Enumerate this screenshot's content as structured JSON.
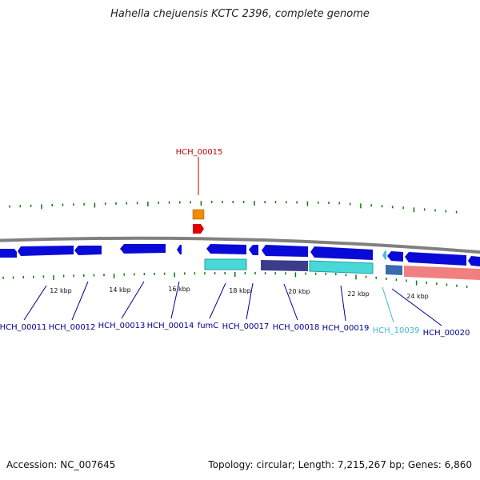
{
  "header": {
    "title": "Hahella chejuensis KCTC 2396, complete genome"
  },
  "footer": {
    "accession": "Accession: NC_007645",
    "summary": "Topology: circular; Length: 7,215,267 bp; Genes: 6,860"
  },
  "colors": {
    "cds": "#0a0ad8",
    "trna": "#48d8d8",
    "dark_feature": "#3c3c8c",
    "rrna": "#f08080",
    "backbone": "#808080",
    "tick": "#0a7a0a",
    "label_blue": "#000090",
    "label_cyan": "#40b8d8",
    "label_red": "#c00000",
    "orange_feature": "#f08c00",
    "red_feature": "#e00000"
  },
  "scale_labels": [
    "12 kbp",
    "14 kbp",
    "16 kbp",
    "18 kbp",
    "20 kbp",
    "22 kbp",
    "24 kbp"
  ],
  "gene_labels": [
    {
      "text": "HCH_00011",
      "color": "label_blue"
    },
    {
      "text": "HCH_00012",
      "color": "label_blue"
    },
    {
      "text": "HCH_00013",
      "color": "label_blue"
    },
    {
      "text": "HCH_00014",
      "color": "label_blue"
    },
    {
      "text": "fumC",
      "color": "label_blue"
    },
    {
      "text": "HCH_00017",
      "color": "label_blue"
    },
    {
      "text": "HCH_00018",
      "color": "label_blue"
    },
    {
      "text": "HCH_00019",
      "color": "label_blue"
    },
    {
      "text": "HCH_10039",
      "color": "label_cyan"
    },
    {
      "text": "HCH_00020",
      "color": "label_blue"
    }
  ],
  "top_label": {
    "text": "HCH_00015",
    "color": "label_red"
  }
}
